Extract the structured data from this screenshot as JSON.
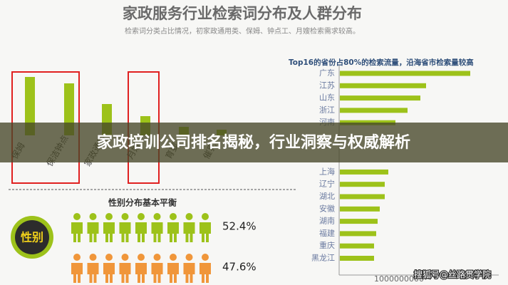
{
  "header": {
    "title": "家政服务行业检索词分布及人群分布",
    "subtitle": "检索词分类占比情况，初家政通用类、保姆、钟点工、月嫂检索需求较高。"
  },
  "banner": "家政培训公司排名揭秘，行业洞察与权威解析",
  "watermark": "搜狐号@丝路贯学院",
  "chart_data": [
    {
      "type": "bar",
      "categories": [
        "保姆",
        "保洁钟点",
        "家政通用",
        "月嫂",
        "育婴",
        "催乳"
      ],
      "values": [
        82,
        73,
        44,
        27,
        12,
        8
      ],
      "color": "#9dc21a"
    },
    {
      "type": "hbar",
      "title": "Top16的省份占80%的检索流量，沿海省市检索量较高",
      "categories": [
        "广东",
        "江苏",
        "山东",
        "浙江",
        "河南",
        null,
        null,
        null,
        "上海",
        "辽宁",
        "湖北",
        "安徽",
        "湖南",
        "福建",
        "重庆",
        "黑龙江"
      ],
      "values": [
        183,
        121,
        113,
        95,
        78,
        null,
        null,
        null,
        68,
        63,
        63,
        56,
        53,
        51,
        48,
        48
      ],
      "color": "#9dc21a",
      "annotations": [
        "1000000000"
      ]
    },
    {
      "type": "pictogram",
      "title": "性别分布基本平衡",
      "badge": "性别",
      "series": [
        {
          "color": "#9dc21a",
          "values": [
            52.4
          ],
          "value_labels": [
            "52.4%"
          ]
        },
        {
          "color": "#f0963a",
          "values": [
            47.6
          ],
          "value_labels": [
            "47.6%"
          ]
        }
      ]
    }
  ]
}
